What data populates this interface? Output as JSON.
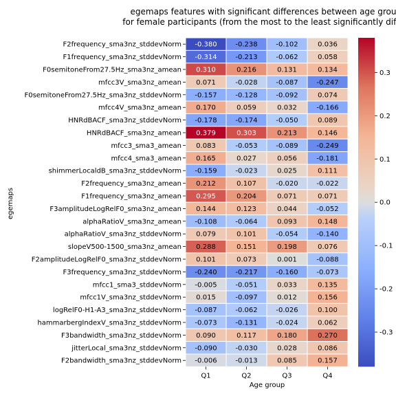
{
  "chart_data": {
    "type": "heatmap",
    "title": "egemaps features with significant differences between age grou\nfor female participants (from the most to the least significantly diffe",
    "xlabel": "Age group",
    "ylabel": "egemaps",
    "columns": [
      "Q1",
      "Q2",
      "Q3",
      "Q4"
    ],
    "rows": [
      "F2frequency_sma3nz_stddevNorm",
      "F1frequency_sma3nz_stddevNorm",
      "F0semitoneFrom27.5Hz_sma3nz_amean",
      "mfcc3V_sma3nz_amean",
      "F0semitoneFrom27.5Hz_sma3nz_stddevNorm",
      "mfcc4V_sma3nz_amean",
      "HNRdBACF_sma3nz_stddevNorm",
      "HNRdBACF_sma3nz_amean",
      "mfcc3_sma3_amean",
      "mfcc4_sma3_amean",
      "shimmerLocaldB_sma3nz_stddevNorm",
      "F2frequency_sma3nz_amean",
      "F1frequency_sma3nz_amean",
      "F3amplitudeLogRelF0_sma3nz_amean",
      "alphaRatioV_sma3nz_amean",
      "alphaRatioV_sma3nz_stddevNorm",
      "slopeV500-1500_sma3nz_amean",
      "F2amplitudeLogRelF0_sma3nz_stddevNorm",
      "F3frequency_sma3nz_stddevNorm",
      "mfcc1_sma3_stddevNorm",
      "mfcc1V_sma3nz_stddevNorm",
      "logRelF0-H1-A3_sma3nz_stddevNorm",
      "hammarbergIndexV_sma3nz_stddevNorm",
      "F3bandwidth_sma3nz_stddevNorm",
      "jitterLocal_sma3nz_stddevNorm",
      "F2bandwidth_sma3nz_stddevNorm"
    ],
    "values": [
      [
        "-0.380",
        "-0.238",
        "-0.102",
        "0.036"
      ],
      [
        "-0.314",
        "-0.213",
        "-0.062",
        "0.058"
      ],
      [
        "0.310",
        "0.216",
        "0.131",
        "0.134"
      ],
      [
        "0.071",
        "-0.028",
        "-0.087",
        "-0.247"
      ],
      [
        "-0.157",
        "-0.128",
        "-0.092",
        "0.074"
      ],
      [
        "0.170",
        "0.059",
        "0.032",
        "-0.166"
      ],
      [
        "-0.178",
        "-0.174",
        "-0.050",
        "0.089"
      ],
      [
        "0.379",
        "0.303",
        "0.213",
        "0.146"
      ],
      [
        "0.083",
        "-0.053",
        "-0.089",
        "-0.249"
      ],
      [
        "0.165",
        "0.027",
        "0.056",
        "-0.181"
      ],
      [
        "-0.159",
        "-0.023",
        "0.025",
        "0.111"
      ],
      [
        "0.212",
        "0.107",
        "-0.020",
        "-0.022"
      ],
      [
        "0.295",
        "0.204",
        "0.071",
        "0.071"
      ],
      [
        "0.144",
        "0.123",
        "0.044",
        "-0.052"
      ],
      [
        "-0.108",
        "-0.064",
        "0.093",
        "0.148"
      ],
      [
        "0.079",
        "0.101",
        "-0.054",
        "-0.140"
      ],
      [
        "0.288",
        "0.151",
        "0.198",
        "0.076"
      ],
      [
        "0.101",
        "0.073",
        "0.001",
        "-0.088"
      ],
      [
        "-0.240",
        "-0.217",
        "-0.160",
        "-0.073"
      ],
      [
        "-0.005",
        "-0.051",
        "0.033",
        "0.135"
      ],
      [
        "0.015",
        "-0.097",
        "0.012",
        "0.156"
      ],
      [
        "-0.087",
        "-0.062",
        "-0.026",
        "0.100"
      ],
      [
        "-0.073",
        "-0.131",
        "-0.024",
        "0.062"
      ],
      [
        "0.090",
        "0.117",
        "0.180",
        "0.270"
      ],
      [
        "-0.090",
        "-0.030",
        "0.028",
        "0.086"
      ],
      [
        "-0.006",
        "-0.013",
        "0.085",
        "0.157"
      ]
    ],
    "colormap": "coolwarm",
    "vmin": -0.38,
    "vmax": 0.38,
    "colorbar_ticks": [
      "0.3",
      "0.2",
      "0.1",
      "0.0",
      "-0.1",
      "-0.2",
      "-0.3"
    ],
    "colors": {
      "low": "#3b4cc0",
      "mid": "#dddddd",
      "high": "#b40426"
    }
  }
}
